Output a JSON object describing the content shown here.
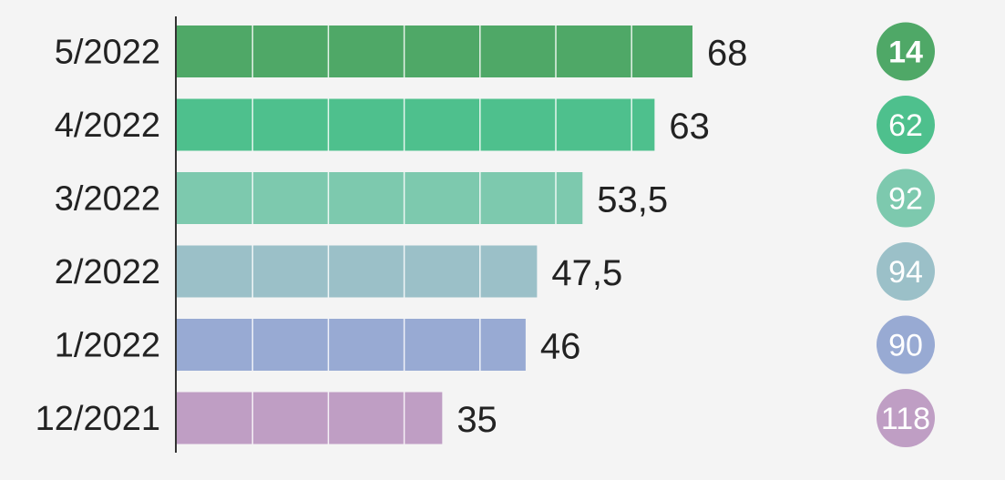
{
  "chart_data": {
    "type": "bar",
    "orientation": "horizontal",
    "categories": [
      "5/2022",
      "4/2022",
      "3/2022",
      "2/2022",
      "1/2022",
      "12/2021"
    ],
    "values": [
      68,
      63,
      53.5,
      47.5,
      46,
      35
    ],
    "value_labels": [
      "68",
      "63",
      "53,5",
      "47,5",
      "46",
      "35"
    ],
    "rank_badges": [
      "14",
      "62",
      "92",
      "94",
      "90",
      "118"
    ],
    "colors": [
      "#4fa867",
      "#4ec08d",
      "#7dc9ae",
      "#9bc0c8",
      "#98aad3",
      "#bf9ec4"
    ],
    "xlim": [
      0,
      68
    ],
    "grid": "vertical white lines inside bars",
    "title": "",
    "xlabel": "",
    "ylabel": ""
  }
}
